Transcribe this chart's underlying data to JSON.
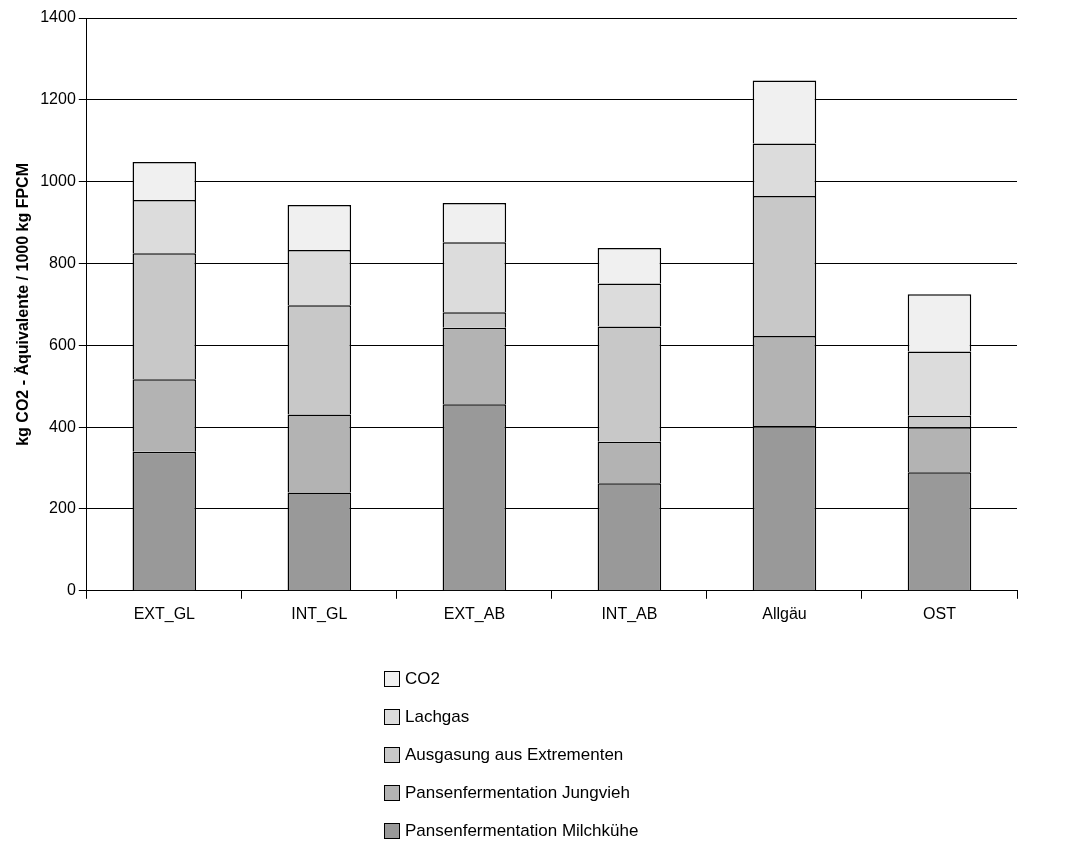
{
  "chart_data": {
    "type": "bar",
    "stacked": true,
    "ylabel": "kg CO2 - Äquivalente / 1000 kg FPCM",
    "categories": [
      "EXT_GL",
      "INT_GL",
      "EXT_AB",
      "INT_AB",
      "Allgäu",
      "OST"
    ],
    "series": [
      {
        "name": "Pansenfermentation Milchkühe",
        "color": "#999999",
        "values": [
          340,
          240,
          456,
          263,
          403,
          290
        ]
      },
      {
        "name": "Pansenfermentation Jungvieh",
        "color": "#b3b3b3",
        "values": [
          177,
          191,
          187,
          101,
          220,
          110
        ]
      },
      {
        "name": "Ausgasung aus Extrementen",
        "color": "#c8c8c8",
        "values": [
          308,
          267,
          38,
          282,
          342,
          28
        ]
      },
      {
        "name": "Lachgas",
        "color": "#dcdcdc",
        "values": [
          130,
          135,
          171,
          105,
          128,
          157
        ]
      },
      {
        "name": "CO2",
        "color": "#f0f0f0",
        "values": [
          93,
          110,
          96,
          87,
          154,
          140
        ]
      }
    ],
    "ylim": [
      0,
      1400
    ],
    "yticks": [
      0,
      200,
      400,
      600,
      800,
      1000,
      1200,
      1400
    ],
    "grid": "y",
    "legend": "bottom"
  }
}
